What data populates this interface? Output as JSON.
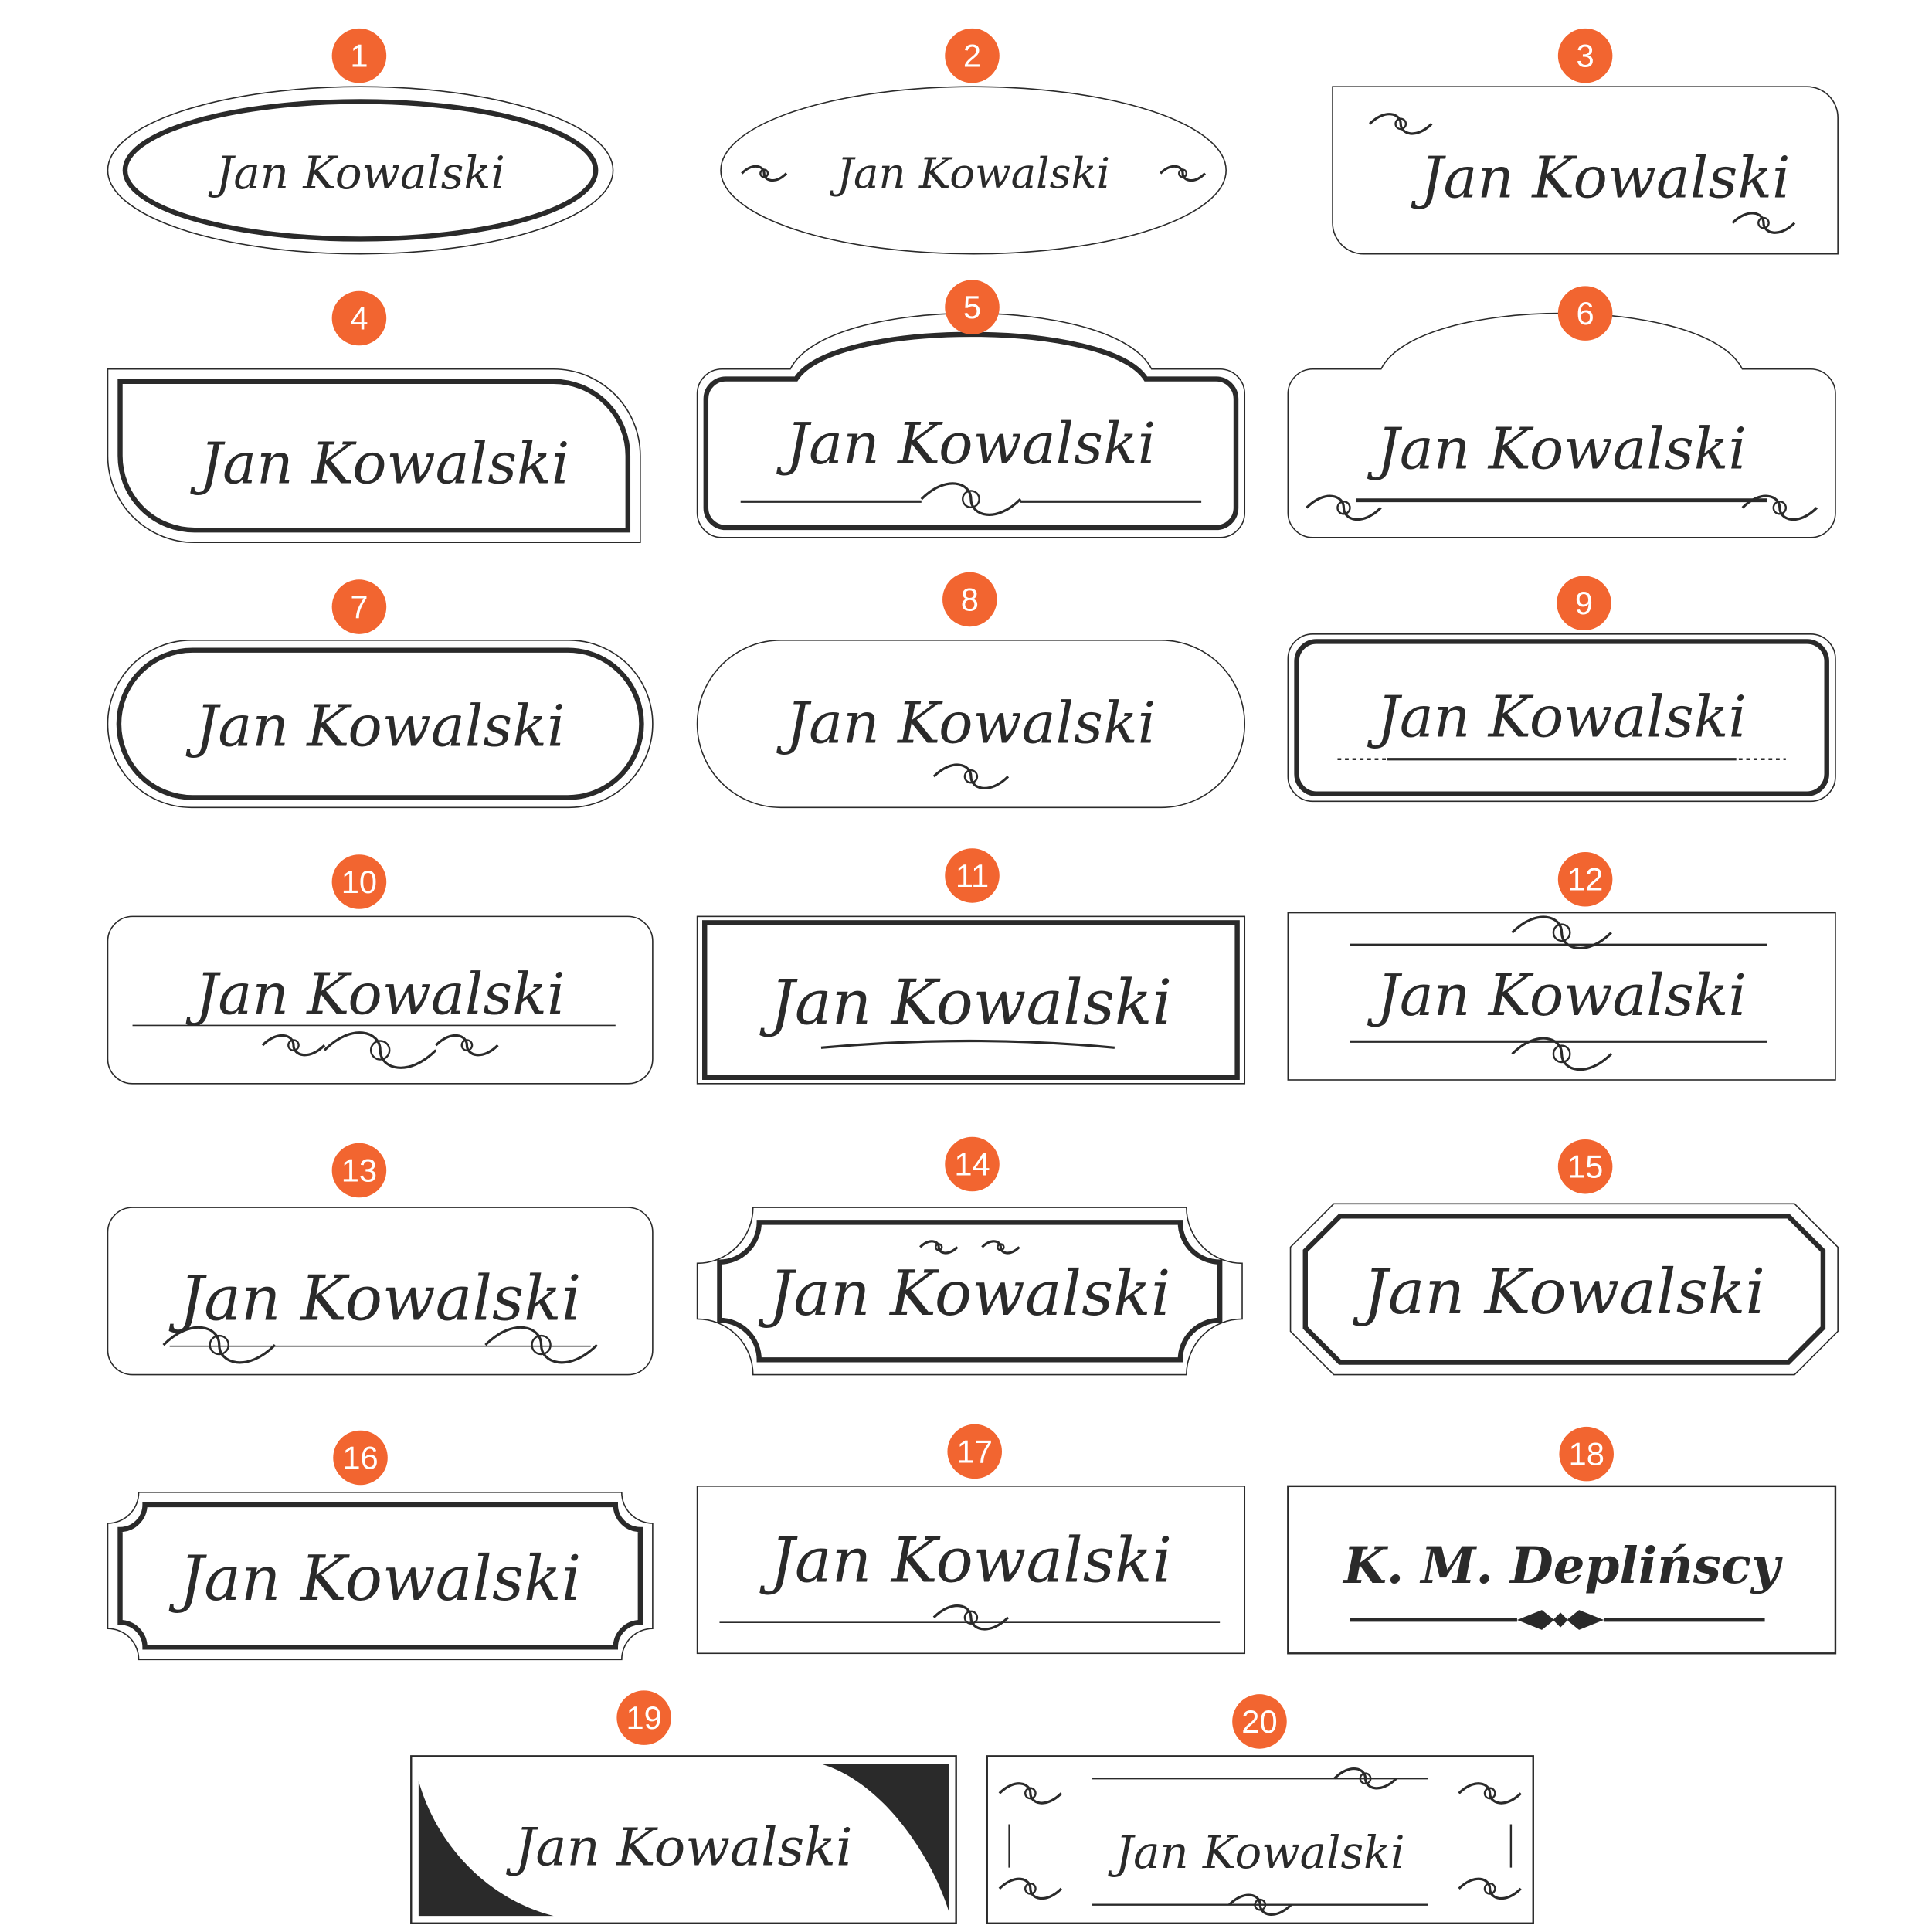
{
  "badge_color": "#f26530",
  "ink_color": "#2a2a2a",
  "plates": [
    {
      "number": "1",
      "name": "Jan Kowalski"
    },
    {
      "number": "2",
      "name": "Jan Kowalski"
    },
    {
      "number": "3",
      "name": "Jan Kowalski"
    },
    {
      "number": "4",
      "name": "Jan Kowalski"
    },
    {
      "number": "5",
      "name": "Jan Kowalski"
    },
    {
      "number": "6",
      "name": "Jan Kowalski"
    },
    {
      "number": "7",
      "name": "Jan Kowalski"
    },
    {
      "number": "8",
      "name": "Jan Kowalski"
    },
    {
      "number": "9",
      "name": "Jan Kowalski"
    },
    {
      "number": "10",
      "name": "Jan Kowalski"
    },
    {
      "number": "11",
      "name": "Jan Kowalski"
    },
    {
      "number": "12",
      "name": "Jan Kowalski"
    },
    {
      "number": "13",
      "name": "Jan Kowalski"
    },
    {
      "number": "14",
      "name": "Jan Kowalski"
    },
    {
      "number": "15",
      "name": "Jan Kowalski"
    },
    {
      "number": "16",
      "name": "Jan Kowalski"
    },
    {
      "number": "17",
      "name": "Jan Kowalski"
    },
    {
      "number": "18",
      "name": "K. M. Deplińscy"
    },
    {
      "number": "19",
      "name": "Jan Kowalski"
    },
    {
      "number": "20",
      "name": "Jan Kowalski"
    }
  ]
}
